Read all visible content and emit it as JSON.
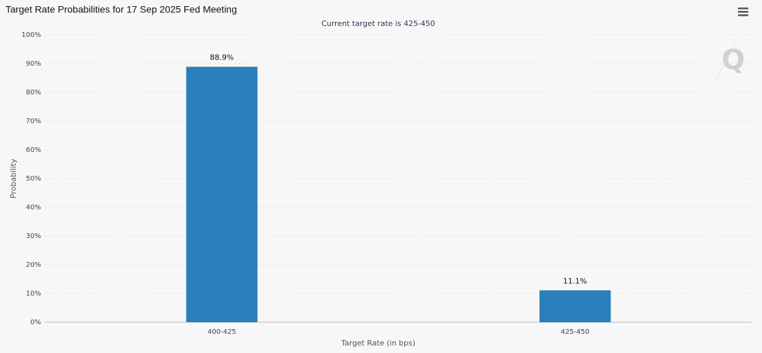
{
  "chart_data": {
    "type": "bar",
    "title": "Target Rate Probabilities for 17 Sep 2025 Fed Meeting",
    "subtitle": "Current target rate is 425-450",
    "x_label": "Target Rate (in bps)",
    "y_label": "Probability",
    "categories": [
      "400-425",
      "425-450"
    ],
    "values": [
      88.9,
      11.1
    ],
    "value_labels": [
      "88.9%",
      "11.1%"
    ],
    "color": "#2a7fba",
    "ylim": [
      0,
      100
    ],
    "yticks": [
      {
        "value": 0,
        "label": "0%"
      },
      {
        "value": 10,
        "label": "10%"
      },
      {
        "value": 20,
        "label": "20%"
      },
      {
        "value": 30,
        "label": "30%"
      },
      {
        "value": 40,
        "label": "40%"
      },
      {
        "value": 50,
        "label": "50%"
      },
      {
        "value": 60,
        "label": "60%"
      },
      {
        "value": 70,
        "label": "70%"
      },
      {
        "value": 80,
        "label": "80%"
      },
      {
        "value": 90,
        "label": "90%"
      },
      {
        "value": 100,
        "label": "100%"
      }
    ],
    "grid": true
  }
}
